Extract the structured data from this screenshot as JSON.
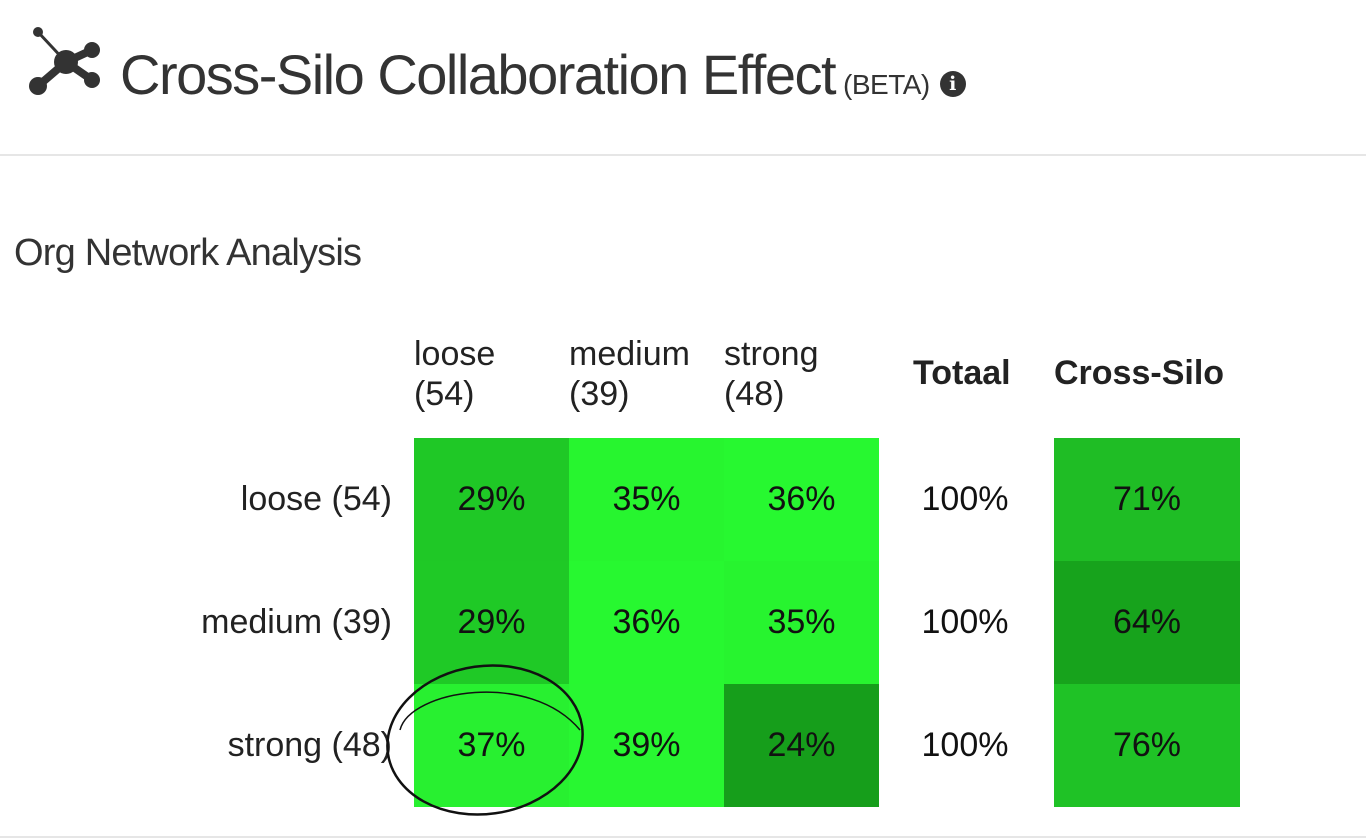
{
  "header": {
    "title": "Cross-Silo Collaboration Effect",
    "beta": "(BETA)",
    "info_glyph": "i",
    "icons": [
      "network-icon",
      "info-icon"
    ]
  },
  "section_title": "Org Network Analysis",
  "table": {
    "columns": [
      {
        "name": "loose",
        "count": "(54)"
      },
      {
        "name": "medium",
        "count": "(39)"
      },
      {
        "name": "strong",
        "count": "(48)"
      }
    ],
    "total_header": "Totaal",
    "cross_header": "Cross-Silo",
    "rows": [
      {
        "label": "loose (54)",
        "cells": [
          "29%",
          "35%",
          "36%"
        ],
        "total": "100%",
        "cross": "71%"
      },
      {
        "label": "medium (39)",
        "cells": [
          "29%",
          "36%",
          "35%"
        ],
        "total": "100%",
        "cross": "64%"
      },
      {
        "label": "strong (48)",
        "cells": [
          "37%",
          "39%",
          "24%"
        ],
        "total": "100%",
        "cross": "76%"
      }
    ]
  },
  "colors": {
    "cells": [
      [
        "#1fc826",
        "#27f52f",
        "#27f830"
      ],
      [
        "#1fc926",
        "#27f830",
        "#27f42f"
      ],
      [
        "#28f030",
        "#28f731",
        "#169e1b"
      ]
    ],
    "cross": [
      "#1fbd25",
      "#17a31c",
      "#1fc226"
    ]
  }
}
